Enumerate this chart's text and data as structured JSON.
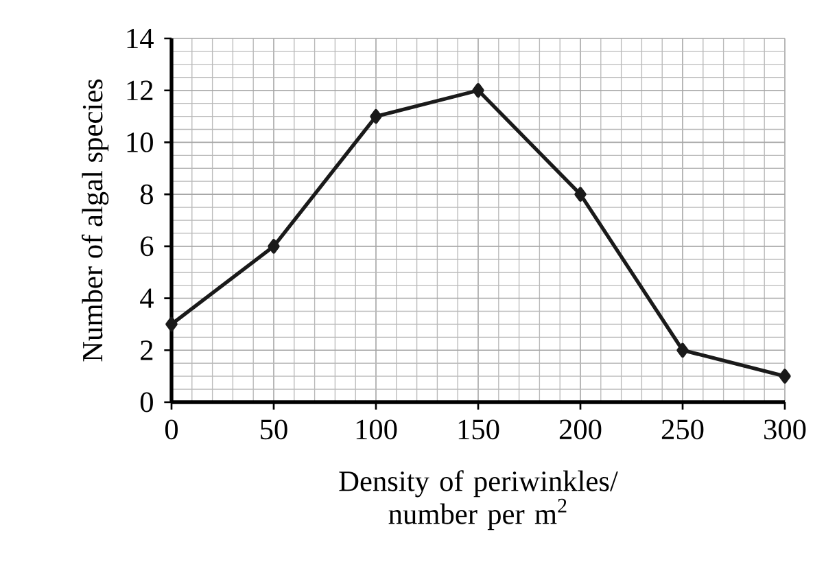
{
  "chart_data": {
    "type": "line",
    "xlabel": "Density of periwinkles/ number per m$^{2}$",
    "ylabel": "Number of algal species",
    "x": [
      0,
      50,
      100,
      150,
      200,
      250,
      300
    ],
    "values": [
      3,
      6,
      11,
      12,
      8,
      2,
      1
    ],
    "color": "#1a1a1a",
    "marker": "diamond",
    "line_style": "solid",
    "grid": true,
    "xlim": [
      0,
      300
    ],
    "xticks": [
      0,
      50,
      100,
      150,
      200,
      250,
      300
    ],
    "ylim": [
      0,
      14
    ],
    "yticks": [
      0,
      2,
      4,
      6,
      8,
      10,
      12,
      14
    ]
  }
}
